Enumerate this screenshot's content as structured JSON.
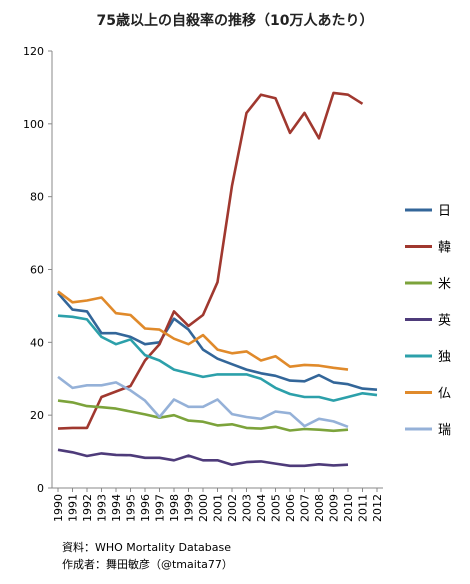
{
  "chart_data": {
    "type": "line",
    "title": "75歳以上の自殺率の推移（10万人あたり）",
    "categories": [
      "1990",
      "1991",
      "1992",
      "1993",
      "1994",
      "1995",
      "1996",
      "1997",
      "1998",
      "1999",
      "2000",
      "2001",
      "2002",
      "2003",
      "2004",
      "2005",
      "2006",
      "2007",
      "2008",
      "2009",
      "2010",
      "2011",
      "2012"
    ],
    "ylim": [
      0,
      120
    ],
    "yticks": [
      0,
      20,
      40,
      60,
      80,
      100,
      120
    ],
    "grid": false,
    "legend_position": "right",
    "series": [
      {
        "name": "日",
        "color": "#336699",
        "values": [
          53.5,
          49,
          48.5,
          42.5,
          42.5,
          41.5,
          39.5,
          40,
          46.5,
          43.5,
          38,
          35.5,
          34,
          32.5,
          31.5,
          30.8,
          29.5,
          29.3,
          31,
          29,
          28.5,
          27.3,
          27
        ]
      },
      {
        "name": "韓",
        "color": "#a0382f",
        "values": [
          16.3,
          16.5,
          16.5,
          25,
          26.5,
          28,
          35,
          39.5,
          48.5,
          44.5,
          47.5,
          56.5,
          83,
          103,
          108,
          107,
          97.5,
          103,
          96,
          108.5,
          108,
          105.5,
          null
        ]
      },
      {
        "name": "米",
        "color": "#7ca33b",
        "values": [
          24,
          23.5,
          22.5,
          22.2,
          21.8,
          21,
          20.2,
          19.3,
          20,
          18.5,
          18.2,
          17.2,
          17.5,
          16.5,
          16.3,
          16.8,
          15.8,
          16.2,
          16,
          15.7,
          16,
          null,
          null
        ]
      },
      {
        "name": "英",
        "color": "#4e3b7a",
        "values": [
          10.5,
          9.8,
          8.8,
          9.5,
          9.1,
          9,
          8.3,
          8.3,
          7.6,
          8.9,
          7.6,
          7.6,
          6.4,
          7.1,
          7.3,
          6.7,
          6.1,
          6.1,
          6.5,
          6.2,
          6.4,
          null,
          null
        ]
      },
      {
        "name": "独",
        "color": "#2ca0aa",
        "values": [
          47.3,
          47,
          46.3,
          41.5,
          39.5,
          40.8,
          36.5,
          35,
          32.5,
          31.5,
          30.5,
          31.2,
          31.2,
          31.2,
          30,
          27.5,
          25.8,
          25,
          25,
          24,
          25,
          26,
          25.5
        ]
      },
      {
        "name": "仏",
        "color": "#e08a2b",
        "values": [
          54,
          51,
          51.5,
          52.3,
          48,
          47.5,
          43.8,
          43.5,
          41,
          39.5,
          42,
          38,
          37,
          37.5,
          35,
          36.2,
          33.3,
          33.8,
          33.6,
          33,
          32.5,
          null,
          null
        ]
      },
      {
        "name": "瑞",
        "color": "#95b1d8",
        "values": [
          30.5,
          27.5,
          28.2,
          28.2,
          29,
          26.8,
          24,
          19.5,
          24.3,
          22.3,
          22.3,
          24.3,
          20.3,
          19.5,
          19,
          21,
          20.5,
          17,
          19,
          18.3,
          16.8,
          null,
          null
        ]
      }
    ],
    "source": "資料：WHO Mortality Database",
    "author": "作成者：舞田敏彦（@tmaita77）"
  }
}
